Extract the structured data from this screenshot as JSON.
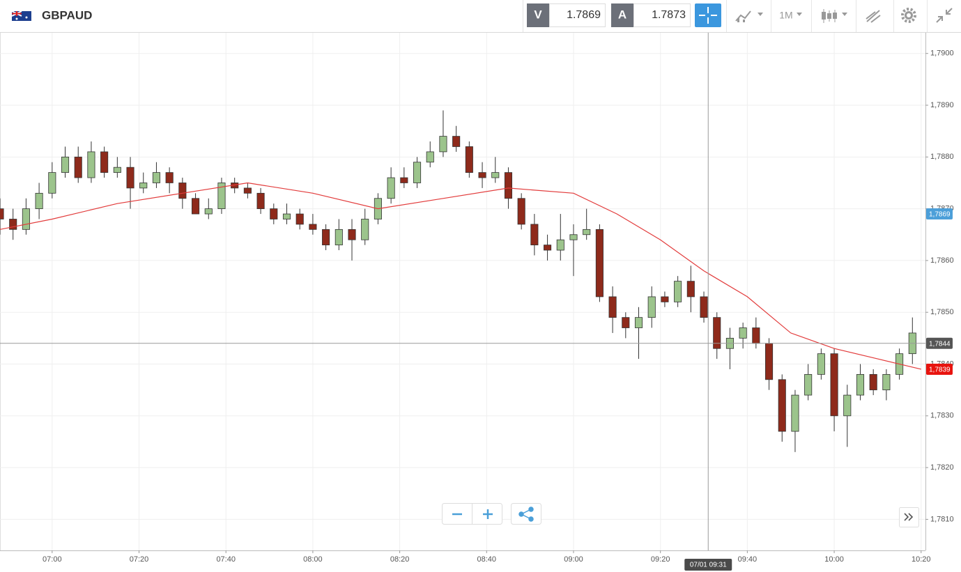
{
  "header": {
    "symbol": "GBPAUD",
    "bid_label": "V",
    "bid": 1.7869,
    "ask_label": "A",
    "ask": 1.7873,
    "timeframe": "1M"
  },
  "chart_data": {
    "type": "candlestick",
    "x": [
      "06:48",
      "06:51",
      "06:54",
      "06:57",
      "07:00",
      "07:03",
      "07:06",
      "07:09",
      "07:12",
      "07:15",
      "07:18",
      "07:21",
      "07:24",
      "07:27",
      "07:30",
      "07:33",
      "07:36",
      "07:39",
      "07:42",
      "07:45",
      "07:48",
      "07:51",
      "07:54",
      "07:57",
      "08:00",
      "08:03",
      "08:06",
      "08:09",
      "08:12",
      "08:15",
      "08:18",
      "08:21",
      "08:24",
      "08:27",
      "08:30",
      "08:33",
      "08:36",
      "08:39",
      "08:42",
      "08:45",
      "08:48",
      "08:51",
      "08:54",
      "08:57",
      "09:00",
      "09:03",
      "09:06",
      "09:09",
      "09:12",
      "09:15",
      "09:18",
      "09:21",
      "09:24",
      "09:27",
      "09:30",
      "09:33",
      "09:36",
      "09:39",
      "09:42",
      "09:45",
      "09:48",
      "09:51",
      "09:54",
      "09:57",
      "10:00",
      "10:03",
      "10:06",
      "10:09",
      "10:12",
      "10:15",
      "10:18"
    ],
    "open": [
      1.787,
      1.7868,
      1.7866,
      1.787,
      1.7873,
      1.7877,
      1.788,
      1.7876,
      1.7881,
      1.7877,
      1.7878,
      1.7874,
      1.7875,
      1.7877,
      1.7875,
      1.7872,
      1.7869,
      1.787,
      1.7875,
      1.7874,
      1.7873,
      1.787,
      1.7868,
      1.7869,
      1.7867,
      1.7866,
      1.7863,
      1.7866,
      1.7864,
      1.7868,
      1.7872,
      1.7876,
      1.7875,
      1.7879,
      1.7881,
      1.7884,
      1.7882,
      1.7877,
      1.7876,
      1.7877,
      1.7872,
      1.7867,
      1.7863,
      1.7862,
      1.7864,
      1.7865,
      1.7866,
      1.7853,
      1.7849,
      1.7847,
      1.7849,
      1.7853,
      1.7852,
      1.7856,
      1.7853,
      1.7849,
      1.7843,
      1.7845,
      1.7847,
      1.7844,
      1.7837,
      1.7827,
      1.7834,
      1.7838,
      1.7842,
      1.783,
      1.7834,
      1.7838,
      1.7835,
      1.7838,
      1.7842
    ],
    "high": [
      1.7872,
      1.787,
      1.7872,
      1.7875,
      1.7879,
      1.7882,
      1.7882,
      1.7883,
      1.7882,
      1.788,
      1.788,
      1.7877,
      1.7879,
      1.7878,
      1.7876,
      1.7873,
      1.7872,
      1.7876,
      1.7876,
      1.7875,
      1.7874,
      1.7871,
      1.7871,
      1.787,
      1.7869,
      1.7867,
      1.7868,
      1.7868,
      1.787,
      1.7873,
      1.7878,
      1.7878,
      1.788,
      1.7883,
      1.7889,
      1.7886,
      1.7883,
      1.7879,
      1.788,
      1.7878,
      1.7873,
      1.7869,
      1.7865,
      1.7869,
      1.7867,
      1.787,
      1.7867,
      1.7855,
      1.785,
      1.7851,
      1.7855,
      1.7854,
      1.7857,
      1.7859,
      1.7854,
      1.785,
      1.7847,
      1.7848,
      1.7849,
      1.7845,
      1.7838,
      1.7835,
      1.784,
      1.7843,
      1.7843,
      1.7836,
      1.784,
      1.7839,
      1.7839,
      1.7843,
      1.7849
    ],
    "low": [
      1.7865,
      1.7864,
      1.7865,
      1.7868,
      1.7872,
      1.7876,
      1.7875,
      1.7875,
      1.7876,
      1.7876,
      1.787,
      1.7873,
      1.7874,
      1.7873,
      1.787,
      1.7869,
      1.7868,
      1.7869,
      1.7873,
      1.7872,
      1.7869,
      1.7867,
      1.7867,
      1.7866,
      1.7865,
      1.7862,
      1.7862,
      1.786,
      1.7863,
      1.7867,
      1.7871,
      1.7874,
      1.7874,
      1.7878,
      1.788,
      1.7881,
      1.7876,
      1.7874,
      1.7875,
      1.787,
      1.7866,
      1.7861,
      1.786,
      1.786,
      1.7857,
      1.7864,
      1.7852,
      1.7846,
      1.7845,
      1.7841,
      1.7847,
      1.7851,
      1.7851,
      1.785,
      1.7848,
      1.7841,
      1.7839,
      1.7843,
      1.7843,
      1.7835,
      1.7825,
      1.7823,
      1.7833,
      1.7837,
      1.7827,
      1.7824,
      1.7833,
      1.7834,
      1.7833,
      1.7837,
      1.784
    ],
    "close": [
      1.7868,
      1.7866,
      1.787,
      1.7873,
      1.7877,
      1.788,
      1.7876,
      1.7881,
      1.7877,
      1.7878,
      1.7874,
      1.7875,
      1.7877,
      1.7875,
      1.7872,
      1.7869,
      1.787,
      1.7875,
      1.7874,
      1.7873,
      1.787,
      1.7868,
      1.7869,
      1.7867,
      1.7866,
      1.7863,
      1.7866,
      1.7864,
      1.7868,
      1.7872,
      1.7876,
      1.7875,
      1.7879,
      1.7881,
      1.7884,
      1.7882,
      1.7877,
      1.7876,
      1.7877,
      1.7872,
      1.7867,
      1.7863,
      1.7862,
      1.7864,
      1.7865,
      1.7866,
      1.7853,
      1.7849,
      1.7847,
      1.7849,
      1.7853,
      1.7852,
      1.7856,
      1.7853,
      1.7849,
      1.7843,
      1.7845,
      1.7847,
      1.7844,
      1.7837,
      1.7827,
      1.7834,
      1.7838,
      1.7842,
      1.783,
      1.7834,
      1.7838,
      1.7835,
      1.7838,
      1.7842,
      1.7846
    ],
    "up_color": "#9cc48c",
    "down_color": "#8e2a1b",
    "wick_color": "#333333",
    "moving_average": {
      "color": "#e23b3b",
      "x": [
        "06:48",
        "07:00",
        "07:15",
        "07:30",
        "07:45",
        "08:00",
        "08:15",
        "08:30",
        "08:45",
        "09:00",
        "09:10",
        "09:20",
        "09:30",
        "09:40",
        "09:50",
        "10:00",
        "10:10",
        "10:20"
      ],
      "values": [
        1.7866,
        1.7868,
        1.7871,
        1.7873,
        1.7875,
        1.7873,
        1.787,
        1.7872,
        1.7874,
        1.7873,
        1.7869,
        1.7864,
        1.7858,
        1.7853,
        1.7846,
        1.7843,
        1.7841,
        1.7839
      ]
    },
    "xlim": [
      "06:48",
      "10:21"
    ],
    "xticks": [
      "07:00",
      "07:20",
      "07:40",
      "08:00",
      "08:20",
      "08:40",
      "09:00",
      "09:20",
      "09:40",
      "10:00",
      "10:20"
    ],
    "ylim": [
      1.7804,
      1.7904
    ],
    "yticks": [
      {
        "value": 1.781,
        "label": "1,7810"
      },
      {
        "value": 1.782,
        "label": "1,7820"
      },
      {
        "value": 1.783,
        "label": "1,7830"
      },
      {
        "value": 1.784,
        "label": "1,7840"
      },
      {
        "value": 1.785,
        "label": "1,7850"
      },
      {
        "value": 1.786,
        "label": "1,7860"
      },
      {
        "value": 1.787,
        "label": "1,7870"
      },
      {
        "value": 1.788,
        "label": "1,7880"
      },
      {
        "value": 1.789,
        "label": "1,7890"
      },
      {
        "value": 1.79,
        "label": "1,7900"
      }
    ],
    "grid": true,
    "price_badges": [
      {
        "value": 1.7869,
        "label": "1,7869",
        "color": "#4c9fd9"
      },
      {
        "value": 1.7839,
        "label": "1,7839",
        "color": "#e8140f"
      }
    ],
    "crosshair": {
      "x": "09:31",
      "x_label": "07/01 09:31",
      "y": 1.7844,
      "y_label": "1,7844"
    }
  }
}
